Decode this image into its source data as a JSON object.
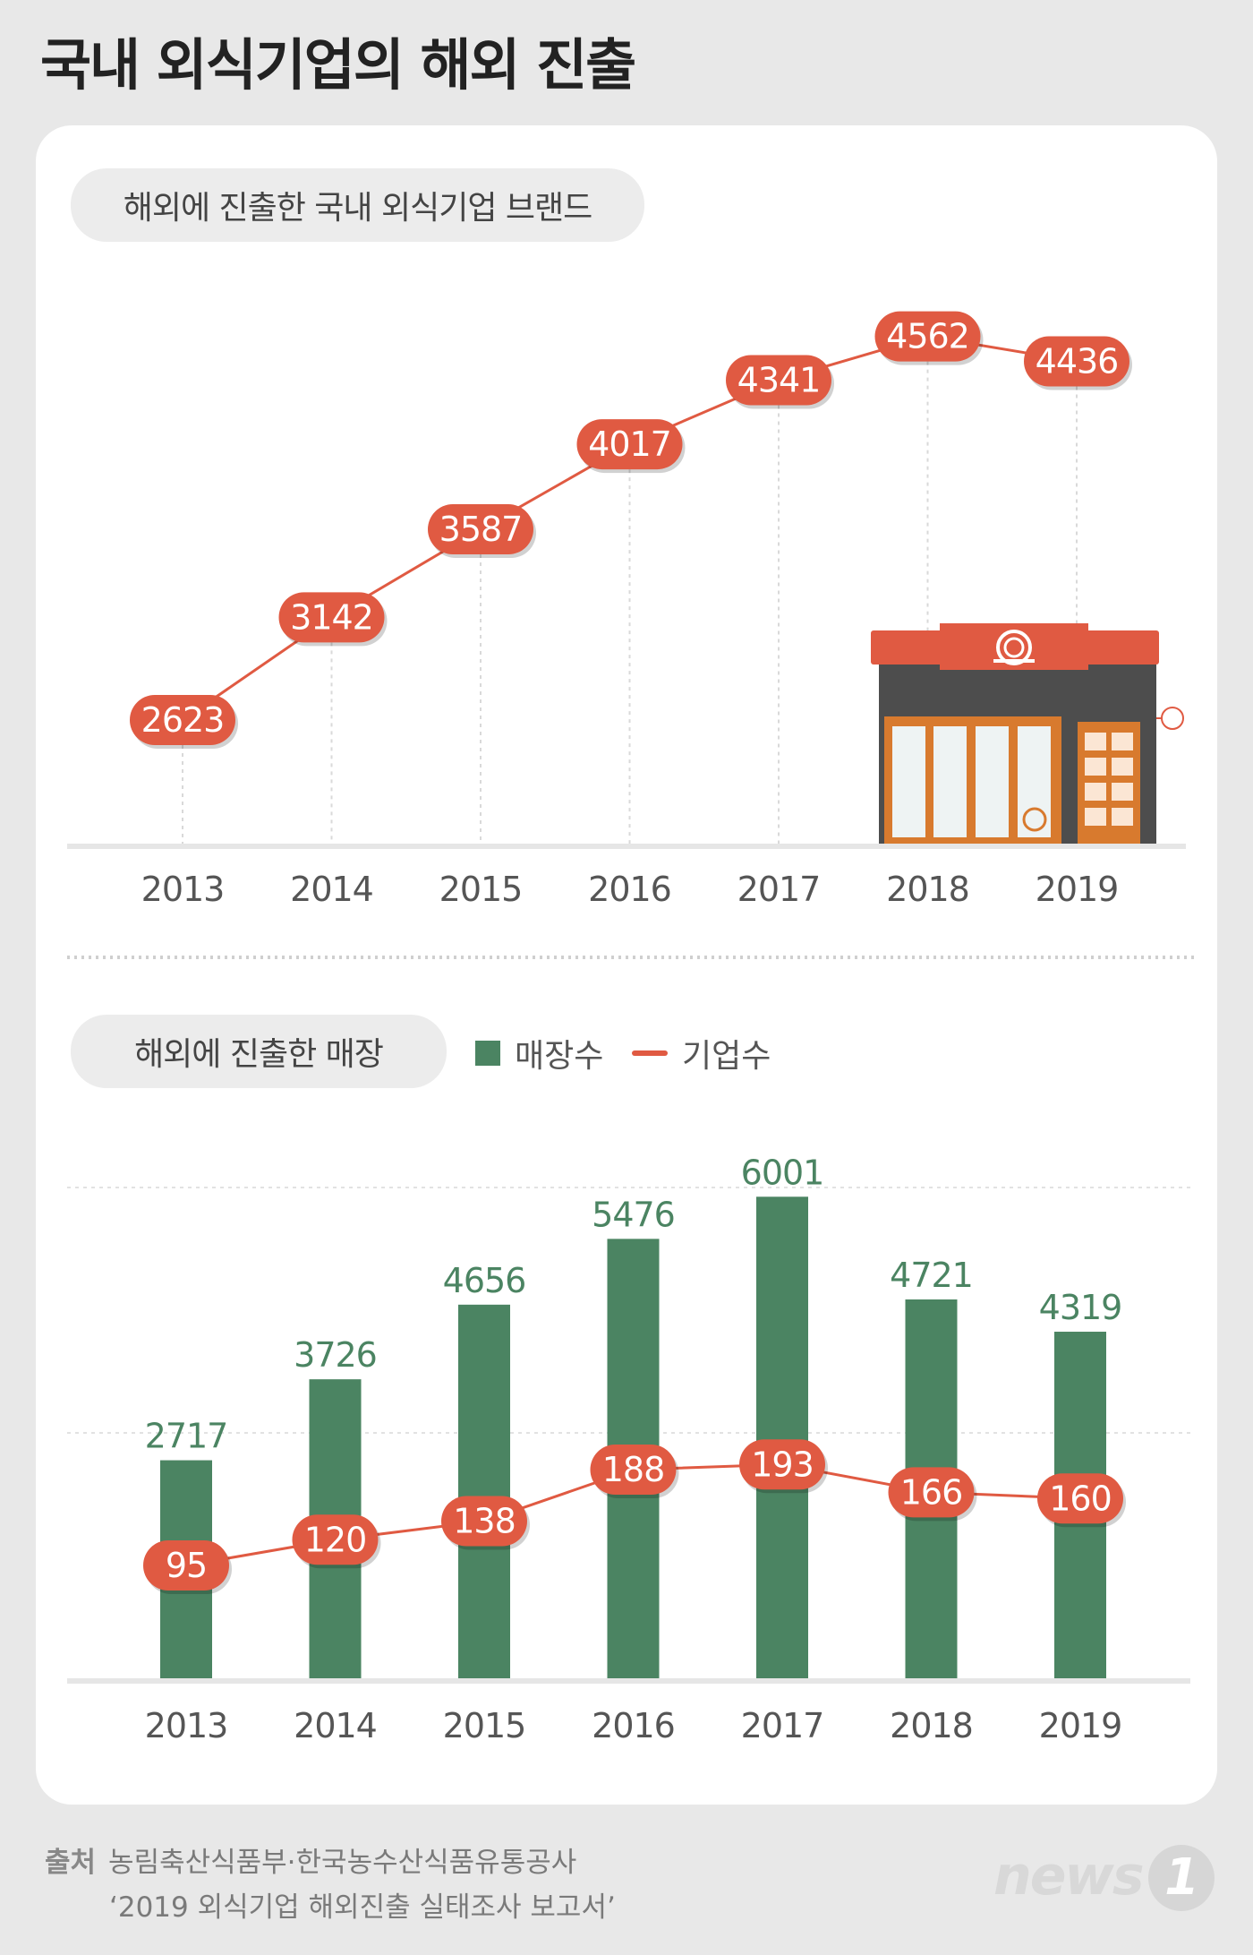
{
  "title": "국내 외식기업의 해외 진출",
  "section_top": {
    "pill": "해외에 진출한 국내 외식기업 브랜드"
  },
  "section_bottom": {
    "pill": "해외에 진출한 매장",
    "legend_bar": "매장수",
    "legend_line": "기업수"
  },
  "colors": {
    "bar": "#4b8462",
    "line": "#e05a42",
    "bar_label": "#4b8462"
  },
  "chart_data": [
    {
      "type": "line",
      "title": "해외에 진출한 국내 외식기업 브랜드",
      "categories": [
        "2013",
        "2014",
        "2015",
        "2016",
        "2017",
        "2018",
        "2019"
      ],
      "series": [
        {
          "values": [
            2623,
            3142,
            3587,
            4017,
            4341,
            4562,
            4436
          ]
        }
      ],
      "illustration": "storefront-icon"
    },
    {
      "type": "bar",
      "title": "해외에 진출한 매장",
      "categories": [
        "2013",
        "2014",
        "2015",
        "2016",
        "2017",
        "2018",
        "2019"
      ],
      "series": [
        {
          "name": "매장수",
          "type": "bar",
          "values": [
            2717,
            3726,
            4656,
            5476,
            6001,
            4721,
            4319
          ]
        },
        {
          "name": "기업수",
          "type": "line",
          "values": [
            95,
            120,
            138,
            188,
            193,
            166,
            160
          ]
        }
      ],
      "legend": "top"
    }
  ],
  "source": {
    "label": "출처",
    "line1": "농림축산식품부·한국농수산식품유통공사",
    "line2": "‘2019 외식기업 해외진출 실태조사 보고서’"
  },
  "logo": {
    "text": "news",
    "mark": "1"
  }
}
